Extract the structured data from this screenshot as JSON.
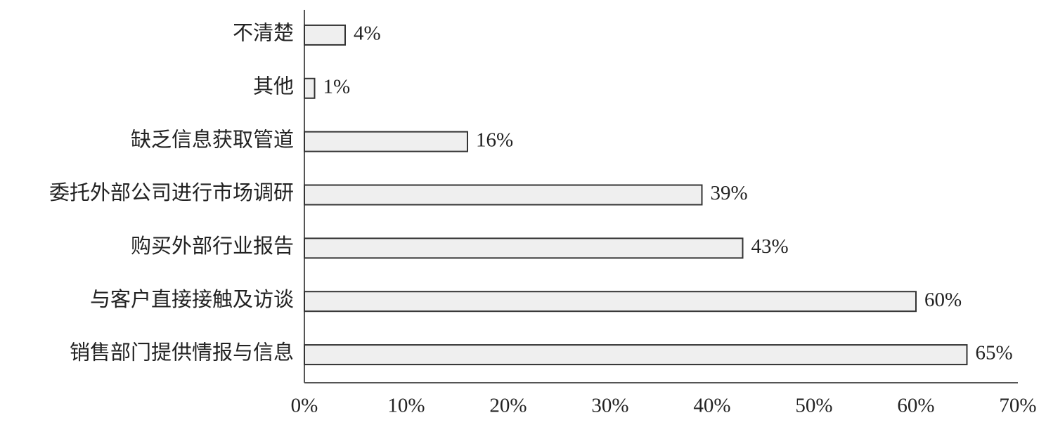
{
  "chart_data": {
    "type": "barh",
    "categories": [
      "不清楚",
      "其他",
      "缺乏信息获取管道",
      "委托外部公司进行市场调研",
      "购买外部行业报告",
      "与客户直接接触及访谈",
      "销售部门提供情报与信息"
    ],
    "values": [
      4,
      1,
      16,
      39,
      43,
      60,
      65
    ],
    "value_labels": [
      "4%",
      "1%",
      "16%",
      "39%",
      "43%",
      "60%",
      "65%"
    ],
    "color": "#efefef",
    "xlim": [
      0,
      70
    ],
    "xticks": [
      {
        "value": 0,
        "label": "0%"
      },
      {
        "value": 10,
        "label": "10%"
      },
      {
        "value": 20,
        "label": "20%"
      },
      {
        "value": 30,
        "label": "30%"
      },
      {
        "value": 40,
        "label": "40%"
      },
      {
        "value": 50,
        "label": "50%"
      },
      {
        "value": 60,
        "label": "60%"
      },
      {
        "value": 70,
        "label": "70%"
      }
    ],
    "grid": false
  }
}
